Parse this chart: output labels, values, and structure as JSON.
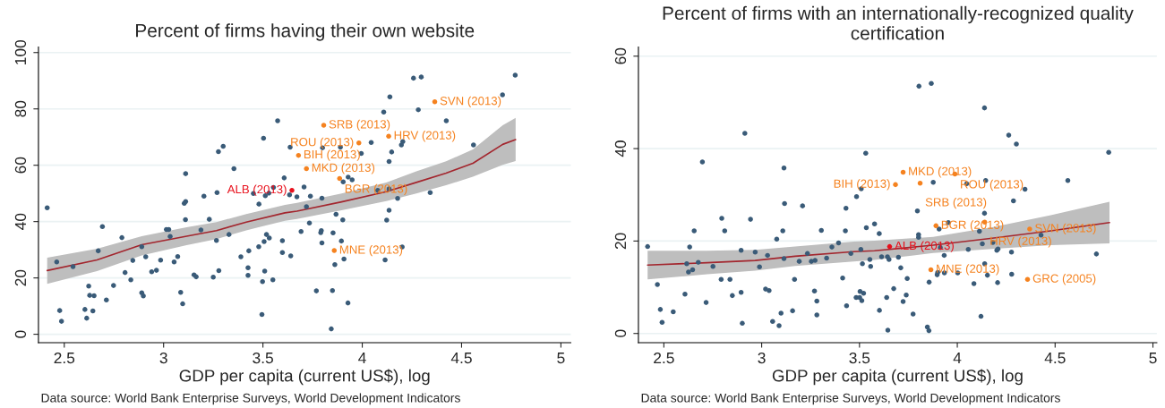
{
  "chart_data": [
    {
      "type": "scatter",
      "title": "Percent of firms having their own website",
      "xlabel": "GDP per capita (current US$), log",
      "xlim": [
        2.37,
        5.05
      ],
      "xticks": [
        2.5,
        3,
        3.5,
        4,
        4.5,
        5
      ],
      "ylim": [
        -3,
        102
      ],
      "yticks": [
        0,
        20,
        40,
        60,
        80,
        100
      ],
      "grid": "y",
      "series": [
        {
          "type": "scatter",
          "color": "#3a5b78",
          "marker": "circle",
          "x": [
            2.414,
            2.462,
            2.477,
            2.486,
            2.544,
            2.604,
            2.613,
            2.623,
            2.628,
            2.65,
            2.644,
            2.671,
            2.692,
            2.712,
            2.748,
            2.79,
            2.806,
            2.835,
            2.845,
            2.89,
            2.91,
            2.89,
            2.898,
            2.94,
            2.964,
            2.985,
            3.014,
            3.026,
            3.033,
            3.053,
            3.071,
            3.086,
            3.096,
            3.111,
            3.104,
            3.111,
            3.11,
            3.153,
            3.164,
            3.188,
            3.203,
            3.23,
            3.25,
            3.266,
            3.269,
            3.278,
            3.276,
            3.3,
            3.329,
            3.354,
            3.389,
            3.429,
            3.425,
            3.425,
            3.452,
            3.48,
            3.479,
            3.495,
            3.498,
            3.503,
            3.506,
            3.509,
            3.512,
            3.518,
            3.53,
            3.532,
            3.55,
            3.553,
            3.574,
            3.598,
            3.598,
            3.607,
            3.637,
            3.634,
            3.64,
            3.671,
            3.692,
            3.707,
            3.739,
            3.719,
            3.734,
            3.8,
            3.797,
            3.794,
            3.791,
            3.797,
            3.769,
            3.85,
            3.844,
            3.853,
            3.868,
            3.862,
            3.89,
            3.895,
            3.902,
            3.908,
            3.904,
            3.928,
            3.929,
            3.949,
            3.995,
            4.045,
            4.078,
            4.108,
            4.115,
            4.123,
            4.135,
            4.135,
            4.135,
            4.139,
            4.148,
            4.178,
            4.197,
            4.201,
            4.204,
            4.258,
            4.282,
            4.297,
            4.342,
            4.423,
            4.56,
            4.706,
            4.77
          ],
          "values": [
            44.9,
            25.7,
            8.4,
            4.6,
            24.0,
            8.8,
            5.7,
            17.1,
            13.8,
            13.7,
            8.3,
            29.6,
            38.2,
            12.2,
            17.3,
            34.3,
            21.9,
            19.3,
            26.2,
            31.1,
            27.5,
            14.7,
            13.6,
            22.2,
            22.7,
            26.3,
            37.2,
            37.2,
            34.7,
            25.7,
            27.6,
            14.9,
            10.8,
            57.0,
            46.5,
            47.1,
            40.7,
            21.1,
            20.4,
            37.0,
            49.0,
            40.8,
            20.3,
            33.3,
            50.3,
            22.6,
            64.8,
            66.7,
            35.4,
            58.8,
            27.5,
            29.6,
            23.6,
            20.9,
            50.0,
            46.2,
            31.1,
            7.0,
            18.7,
            69.6,
            32.9,
            22.4,
            49.2,
            35.4,
            50.1,
            34.2,
            19.3,
            52.1,
            75.8,
            33.2,
            29.0,
            55.5,
            66.4,
            49.5,
            27.8,
            48.8,
            36.5,
            52.3,
            49.0,
            45.3,
            39.5,
            66.2,
            48.3,
            36.8,
            36.1,
            32.4,
            15.4,
            15.5,
            1.9,
            36.0,
            42.6,
            24.7,
            66.4,
            33.1,
            40.6,
            26.7,
            54.1,
            11.1,
            55.8,
            54.8,
            64.2,
            68.1,
            51.1,
            78.9,
            26.4,
            40.5,
            61.3,
            51.6,
            44.0,
            84.3,
            64.7,
            48.2,
            67.2,
            31.0,
            68.4,
            90.9,
            79.7,
            91.3,
            50.3,
            75.8,
            67.2,
            85.0,
            92.0
          ]
        },
        {
          "type": "line",
          "color": "#a3262e",
          "x": [
            2.414,
            2.665,
            2.89,
            3.116,
            3.266,
            3.416,
            3.611,
            3.671,
            3.896,
            4.121,
            4.272,
            4.422,
            4.557,
            4.707,
            4.772
          ],
          "values": [
            22.6,
            26.4,
            31.8,
            34.8,
            36.8,
            39.8,
            43.1,
            43.7,
            47.0,
            50.6,
            53.9,
            57.2,
            60.7,
            67.4,
            69.1
          ],
          "lower": [
            17.9,
            22.4,
            28.0,
            31.6,
            33.8,
            36.9,
            40.3,
            40.9,
            44.0,
            47.3,
            50.0,
            52.9,
            55.9,
            60.1,
            61.5
          ],
          "upper": [
            27.2,
            30.4,
            34.8,
            38.0,
            39.8,
            42.7,
            45.9,
            46.6,
            50.0,
            53.9,
            57.8,
            61.4,
            65.6,
            74.2,
            76.8
          ]
        },
        {
          "type": "scatter",
          "color": "#f5821f",
          "marker": "circle",
          "x": [
            3.806,
            4.365,
            4.133,
            3.983,
            3.679,
            3.719,
            3.886,
            3.859
          ],
          "values": [
            74.2,
            82.5,
            70.3,
            67.9,
            63.5,
            58.8,
            55.3,
            29.7
          ]
        },
        {
          "type": "scatter",
          "color": "#e8101c",
          "marker": "circle",
          "x": [
            3.646
          ],
          "values": [
            51.1
          ]
        }
      ],
      "annotations": [
        {
          "text": "SRB (2013)",
          "x": 3.806,
          "y": 74.2
        },
        {
          "text": "SVN (2013)",
          "x": 4.365,
          "y": 82.5
        },
        {
          "text": "HRV (2013)",
          "x": 4.133,
          "y": 70.3
        },
        {
          "text": "ROU (2013)",
          "x": 3.983,
          "y": 67.9
        },
        {
          "text": "BIH (2013)",
          "x": 3.679,
          "y": 63.5
        },
        {
          "text": "MKD (2013)",
          "x": 3.719,
          "y": 58.8
        },
        {
          "text": "BGR (2013)",
          "x": 3.886,
          "y": 55.3
        },
        {
          "text": "ALB (2013)",
          "x": 3.646,
          "y": 51.1
        },
        {
          "text": "MNE (2013)",
          "x": 3.859,
          "y": 29.7
        },
        "Data source: World Bank Enterprise Surveys, World Development Indicators"
      ]
    },
    {
      "type": "scatter",
      "title": "Percent of firms with an internationally-recognized quality certification",
      "xlabel": "GDP per capita (current US$), log",
      "xlim": [
        2.37,
        5.02
      ],
      "xticks": [
        2.5,
        3,
        3.5,
        4,
        4.5,
        5
      ],
      "ylim": [
        -2,
        62
      ],
      "yticks": [
        0,
        20,
        40,
        60
      ],
      "grid": "y",
      "series": [
        {
          "type": "scatter",
          "color": "#3a5b78",
          "marker": "circle",
          "x": [
            2.417,
            2.467,
            2.482,
            2.491,
            2.548,
            2.608,
            2.617,
            2.626,
            2.632,
            2.647,
            2.655,
            2.676,
            2.697,
            2.716,
            2.751,
            2.793,
            2.796,
            2.811,
            2.838,
            2.85,
            2.895,
            2.895,
            2.901,
            2.914,
            2.943,
            2.967,
            2.989,
            3.02,
            3.03,
            3.038,
            3.056,
            3.077,
            3.089,
            3.099,
            3.108,
            3.114,
            3.117,
            3.114,
            3.158,
            3.168,
            3.192,
            3.209,
            3.234,
            3.254,
            3.273,
            3.27,
            3.282,
            3.282,
            3.305,
            3.332,
            3.359,
            3.393,
            3.414,
            3.428,
            3.431,
            3.434,
            3.456,
            3.483,
            3.485,
            3.501,
            3.503,
            3.507,
            3.509,
            3.512,
            3.515,
            3.521,
            3.532,
            3.535,
            3.553,
            3.557,
            3.577,
            3.601,
            3.602,
            3.613,
            3.643,
            3.651,
            3.639,
            3.645,
            3.675,
            3.699,
            3.711,
            3.723,
            3.739,
            3.744,
            3.774,
            3.796,
            3.802,
            3.802,
            3.804,
            3.847,
            3.855,
            3.856,
            3.867,
            3.877,
            3.897,
            3.9,
            3.907,
            3.913,
            3.933,
            3.934,
            3.954,
            4.002,
            4.048,
            4.056,
            4.085,
            4.113,
            4.121,
            4.128,
            4.139,
            4.139,
            4.14,
            4.145,
            4.154,
            4.182,
            4.202,
            4.206,
            4.208,
            4.263,
            4.277,
            4.278,
            4.287,
            4.302,
            4.346,
            4.428,
            4.565,
            4.711,
            4.774
          ],
          "values": [
            18.8,
            10.6,
            5.2,
            2.4,
            4.7,
            8.5,
            15.1,
            13.3,
            18.7,
            13.8,
            22.2,
            15.4,
            37.1,
            6.7,
            14.5,
            11.7,
            24.9,
            22.2,
            11.7,
            8.2,
            18.0,
            8.9,
            2.2,
            43.3,
            24.7,
            17.6,
            14.4,
            9.6,
            16.9,
            9.3,
            2.6,
            20.4,
            1.7,
            4.4,
            22.2,
            35.8,
            28.1,
            16.2,
            4.9,
            11.7,
            15.6,
            27.6,
            17.3,
            15.6,
            15.8,
            9.2,
            7.0,
            4.0,
            22.3,
            16.3,
            18.7,
            19.6,
            12.0,
            22.2,
            27.1,
            6.0,
            17.3,
            7.8,
            29.6,
            7.8,
            9.1,
            18.2,
            31.3,
            7.1,
            15.1,
            8.7,
            39.0,
            22.9,
            16.0,
            14.5,
            23.7,
            21.6,
            5.0,
            16.6,
            16.6,
            16.0,
            7.8,
            0.7,
            9.7,
            16.5,
            14.2,
            6.9,
            8.3,
            11.9,
            4.2,
            26.5,
            21.4,
            20.8,
            53.5,
            1.4,
            0.6,
            11.1,
            54.1,
            32.7,
            12.7,
            13.2,
            22.6,
            18.6,
            16.9,
            13.1,
            24.0,
            13.1,
            32.4,
            18.2,
            10.8,
            22.1,
            3.7,
            19.4,
            48.8,
            26.0,
            15.1,
            33.1,
            12.6,
            19.7,
            18.0,
            11.0,
            18.3,
            42.9,
            17.6,
            12.8,
            28.7,
            41.0,
            31.2,
            21.3,
            33.1,
            17.2,
            39.2
          ]
        },
        {
          "type": "line",
          "color": "#a3262e",
          "x": [
            2.417,
            2.721,
            2.967,
            3.171,
            3.471,
            3.577,
            3.877,
            4.178,
            4.478,
            4.778
          ],
          "values": [
            14.8,
            15.3,
            15.8,
            16.7,
            17.7,
            17.9,
            19.1,
            20.6,
            22.2,
            24.0
          ],
          "lower": [
            11.7,
            12.8,
            13.6,
            14.6,
            15.6,
            15.9,
            17.4,
            18.3,
            19.1,
            19.5
          ],
          "upper": [
            17.9,
            17.9,
            18.1,
            18.8,
            19.9,
            20.1,
            20.9,
            23.0,
            25.6,
            28.5
          ]
        },
        {
          "type": "scatter",
          "color": "#f5821f",
          "marker": "circle",
          "x": [
            3.723,
            3.988,
            3.684,
            3.81,
            3.891,
            4.14,
            4.37,
            3.865,
            4.359
          ],
          "values": [
            34.9,
            34.5,
            32.2,
            32.5,
            23.3,
            24.1,
            22.6,
            13.8,
            11.7
          ]
        },
        {
          "type": "scatter",
          "color": "#e8101c",
          "marker": "circle",
          "x": [
            3.654
          ],
          "values": [
            18.8
          ]
        }
      ],
      "annotations": [
        {
          "text": "MKD (2013)",
          "x": 3.723,
          "y": 34.9
        },
        {
          "text": "ROU (2013)",
          "x": 3.988,
          "y": 34.5
        },
        {
          "text": "BIH (2013)",
          "x": 3.684,
          "y": 32.2
        },
        {
          "text": "SRB (2013)",
          "x": 3.81,
          "y": 32.5
        },
        {
          "text": "BGR (2013)",
          "x": 3.891,
          "y": 23.3
        },
        {
          "text": "HRV (2013)",
          "x": 4.14,
          "y": 24.1
        },
        {
          "text": "SVN (2013)",
          "x": 4.37,
          "y": 22.6
        },
        {
          "text": "ALB (2013)",
          "x": 3.654,
          "y": 18.8
        },
        {
          "text": "MNE (2013)",
          "x": 3.865,
          "y": 13.8
        },
        {
          "text": "GRC (2005)",
          "x": 4.359,
          "y": 11.7
        },
        "Data source: World Bank Enterprise Surveys, World Development Indicators"
      ]
    }
  ]
}
